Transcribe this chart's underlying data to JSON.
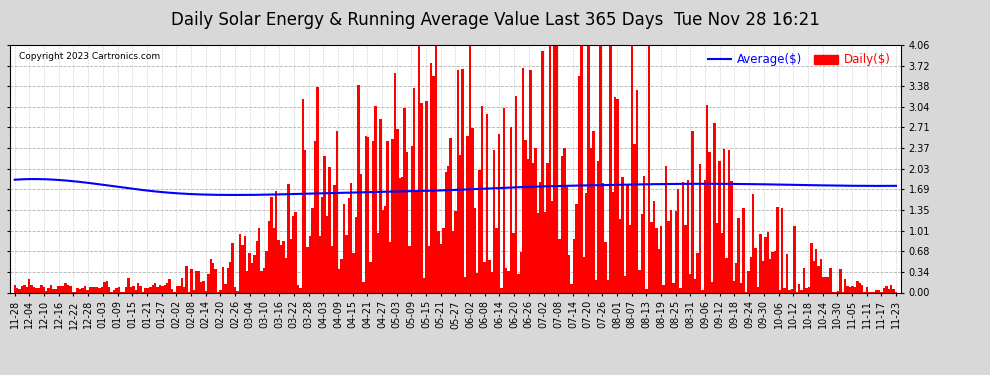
{
  "title": "Daily Solar Energy & Running Average Value Last 365 Days  Tue Nov 28 16:21",
  "copyright_text": "Copyright 2023 Cartronics.com",
  "legend_average": "Average($)",
  "legend_daily": "Daily($)",
  "bar_color": "#FF0000",
  "avg_line_color": "#0000FF",
  "background_color": "#D8D8D8",
  "plot_bg_color": "#FFFFFF",
  "ylim": [
    0.0,
    4.06
  ],
  "yticks": [
    0.0,
    0.34,
    0.68,
    1.01,
    1.35,
    1.69,
    2.03,
    2.37,
    2.71,
    3.04,
    3.38,
    3.72,
    4.06
  ],
  "xtick_labels": [
    "11-28",
    "12-04",
    "12-10",
    "12-16",
    "12-22",
    "12-28",
    "01-03",
    "01-09",
    "01-15",
    "01-21",
    "01-27",
    "02-02",
    "02-08",
    "02-14",
    "02-20",
    "02-26",
    "03-04",
    "03-10",
    "03-16",
    "03-22",
    "03-28",
    "04-03",
    "04-09",
    "04-15",
    "04-21",
    "04-27",
    "05-03",
    "05-09",
    "05-15",
    "05-21",
    "05-27",
    "06-02",
    "06-08",
    "06-14",
    "06-20",
    "06-26",
    "07-02",
    "07-08",
    "07-14",
    "07-20",
    "07-26",
    "08-01",
    "08-07",
    "08-13",
    "08-19",
    "08-25",
    "08-31",
    "09-06",
    "09-12",
    "09-18",
    "09-24",
    "09-30",
    "10-06",
    "10-12",
    "10-18",
    "10-24",
    "10-30",
    "11-05",
    "11-11",
    "11-17",
    "11-23"
  ],
  "avg_line_points_x": [
    0,
    30,
    60,
    90,
    120,
    150,
    180,
    210,
    240,
    270,
    300,
    330,
    364
  ],
  "avg_line_points_y": [
    1.85,
    1.8,
    1.65,
    1.6,
    1.62,
    1.65,
    1.68,
    1.73,
    1.76,
    1.78,
    1.78,
    1.76,
    1.75
  ],
  "grid_color": "#AAAAAA",
  "title_fontsize": 12,
  "tick_fontsize": 7,
  "copyright_fontsize": 6.5,
  "legend_fontsize": 8.5
}
